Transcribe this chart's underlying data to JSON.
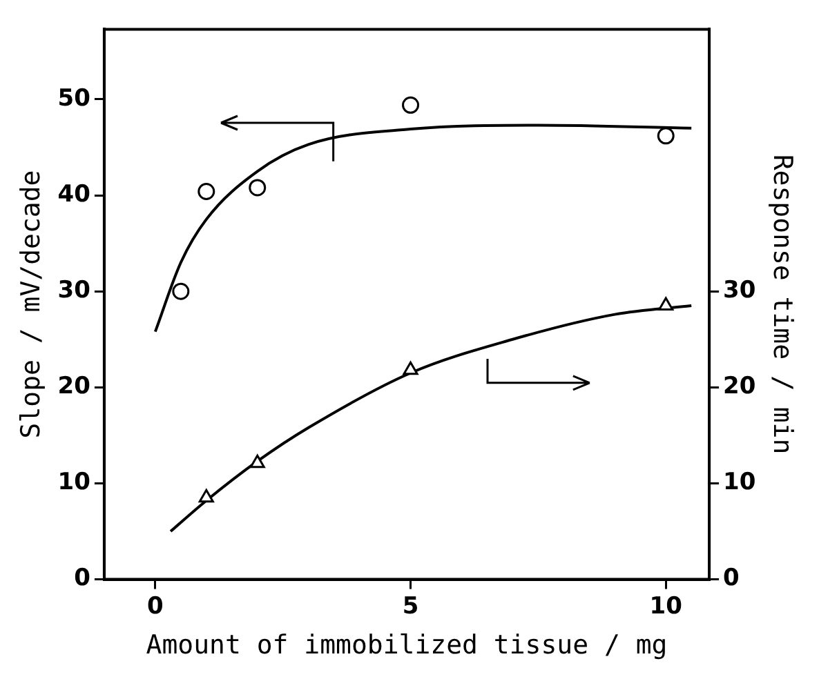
{
  "chart_data": {
    "type": "scatter",
    "xlabel": "Amount of immobilized tissue / mg",
    "ylabel": "Slope / mV/decade",
    "y2label": "Response time / min",
    "series": [
      {
        "type": "scatter",
        "marker": "circle",
        "color": "#000000",
        "x": [
          0.5,
          1,
          2,
          5,
          10
        ],
        "values": [
          30.0,
          40.4,
          40.8,
          49.4,
          46.2
        ]
      },
      {
        "type": "line",
        "marker": "none",
        "color": "#000000",
        "x": [
          0,
          0.5,
          1,
          2,
          3,
          5,
          7.5,
          10.5
        ],
        "values": [
          25.8,
          33,
          37.5,
          42.5,
          45.3,
          46.9,
          47.3,
          47.0
        ]
      },
      {
        "type": "scatter",
        "marker": "triangle",
        "axis": "y2",
        "color": "#000000",
        "x": [
          1,
          2,
          5,
          10
        ],
        "values": [
          8.5,
          12.1,
          21.8,
          28.5
        ]
      },
      {
        "type": "line",
        "marker": "none",
        "axis": "y2",
        "color": "#000000",
        "x": [
          0.3,
          1,
          2,
          3,
          5,
          7,
          9,
          10.5
        ],
        "values": [
          5.0,
          8.2,
          12.3,
          15.8,
          21.5,
          25.0,
          27.6,
          28.5
        ]
      }
    ],
    "xlim": [
      -1,
      10.85
    ],
    "xticks": [
      0,
      5,
      10
    ],
    "ylim": [
      0,
      57.3
    ],
    "yticks": [
      0,
      10,
      20,
      30,
      40,
      50
    ],
    "y2lim": [
      0,
      57.3
    ],
    "y2ticks": [
      0,
      10,
      20,
      30
    ],
    "grid": false,
    "legend": false
  }
}
